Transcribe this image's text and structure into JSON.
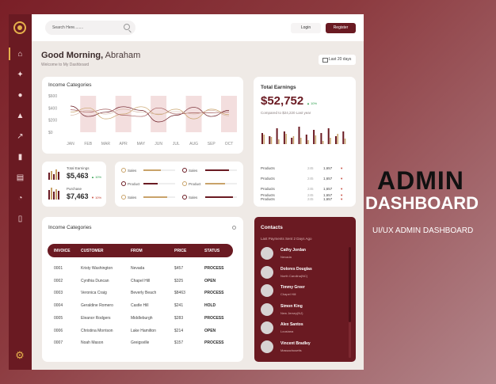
{
  "search": {
    "placeholder": "Search Here........"
  },
  "topbar": {
    "login_label": "Login",
    "register_label": "Register"
  },
  "greeting": {
    "prefix": "Good Morning,",
    "name": "Abraham",
    "welcome": "Welcome to My Dashboard"
  },
  "range": {
    "label": "Last 20 days"
  },
  "sidebar": {
    "items": [
      "home-icon",
      "puzzle-icon",
      "user-icon",
      "bell-icon",
      "analytics-icon",
      "bar-chart-icon",
      "document-icon",
      "pie-chart-icon",
      "report-icon",
      "gear-icon"
    ]
  },
  "income_chart": {
    "title": "Income Categories",
    "chart_data": {
      "type": "line",
      "categories": [
        "JAN",
        "FEB",
        "MAR",
        "APR",
        "MAY",
        "JUN",
        "JUL",
        "AUG",
        "SEP",
        "OCT"
      ],
      "ylim": [
        0,
        600
      ],
      "yticks": [
        "$600",
        "$400",
        "$200",
        "$0"
      ],
      "series": [
        {
          "values": [
            430,
            260,
            330,
            420,
            360,
            170,
            280,
            410,
            260,
            360
          ]
        },
        {
          "values": [
            330,
            400,
            220,
            300,
            420,
            290,
            380,
            220,
            380,
            290
          ]
        },
        {
          "values": [
            370,
            330,
            380,
            280,
            260,
            400,
            300,
            320,
            320,
            330
          ]
        },
        {
          "values": [
            280,
            360,
            300,
            380,
            330,
            300,
            340,
            300,
            360,
            270
          ]
        }
      ]
    }
  },
  "small_stats": {
    "total_label": "Total Earnings",
    "total_value": "$5,463",
    "total_change": "▲ 10%",
    "purchase_label": "Purchase",
    "purchase_value": "$7,463",
    "purchase_change": "▼ 10%"
  },
  "products": {
    "rows": [
      {
        "left": "Sales",
        "right": "Sales"
      },
      {
        "left": "Product",
        "right": "Product"
      },
      {
        "left": "Sales",
        "right": "Sales"
      }
    ]
  },
  "earnings": {
    "title": "Total Earnings",
    "amount": "$52,752",
    "change": "▲ 10%",
    "compared": "Compared to $24,220 Last year",
    "rows": [
      {
        "label": "Products",
        "a": "245",
        "b": "1,657"
      },
      {
        "label": "Products",
        "a": "245",
        "b": "1,657"
      },
      {
        "label": "Products",
        "a": "245",
        "b": "1,657"
      },
      {
        "label": "Products",
        "a": "245",
        "b": "1,657"
      },
      {
        "label": "Products",
        "a": "245",
        "b": "1,657"
      }
    ]
  },
  "table": {
    "title": "Income Categories",
    "headers": [
      "INVOICE",
      "CUSTOMER",
      "FROM",
      "PRICE",
      "STATUS"
    ],
    "rows": [
      [
        "0001",
        "Kristy Washington",
        "Nevada",
        "$457",
        "PROCESS"
      ],
      [
        "0002",
        "Cynthia Duncan",
        "Chapel Hill",
        "$325",
        "OPEN"
      ],
      [
        "0003",
        "Veronica Craig",
        "Beverly Beach",
        "$8463",
        "PROCESS"
      ],
      [
        "0004",
        "Geraldine Romero",
        "Castle Hill",
        "$241",
        "HOLD"
      ],
      [
        "0005",
        "Eleanor Rodgers",
        "Middleburgh",
        "$283",
        "PROCESS"
      ],
      [
        "0006",
        "Christina Morrison",
        "Lake Hamilton",
        "$214",
        "OPEN"
      ],
      [
        "0007",
        "Noah Mason",
        "Greigsville",
        "$157",
        "PROCESS"
      ]
    ]
  },
  "contacts": {
    "title": "Contacts",
    "subtitle": "Last Payments Sent 2 Days Ago",
    "people": [
      {
        "name": "Cathy Jordan",
        "sub": "Nevada"
      },
      {
        "name": "Dolores Douglas",
        "sub": "North Carolina(NC)"
      },
      {
        "name": "Timmy Greer",
        "sub": "Chapel Hill"
      },
      {
        "name": "Simon King",
        "sub": "New Jersey(NJ)"
      },
      {
        "name": "Alex Santos",
        "sub": "Lousiana"
      },
      {
        "name": "Vincent Bradley",
        "sub": "Massachusetts"
      }
    ]
  },
  "promo": {
    "line1": "ADMIN",
    "line2": "DASHBOARD",
    "caption": "UI/UX ADMIN DASHBOARD"
  },
  "colors": {
    "brand": "#6a1a22",
    "accent": "#e5b04b",
    "up": "#2a9d4a",
    "down": "#c0392b"
  }
}
